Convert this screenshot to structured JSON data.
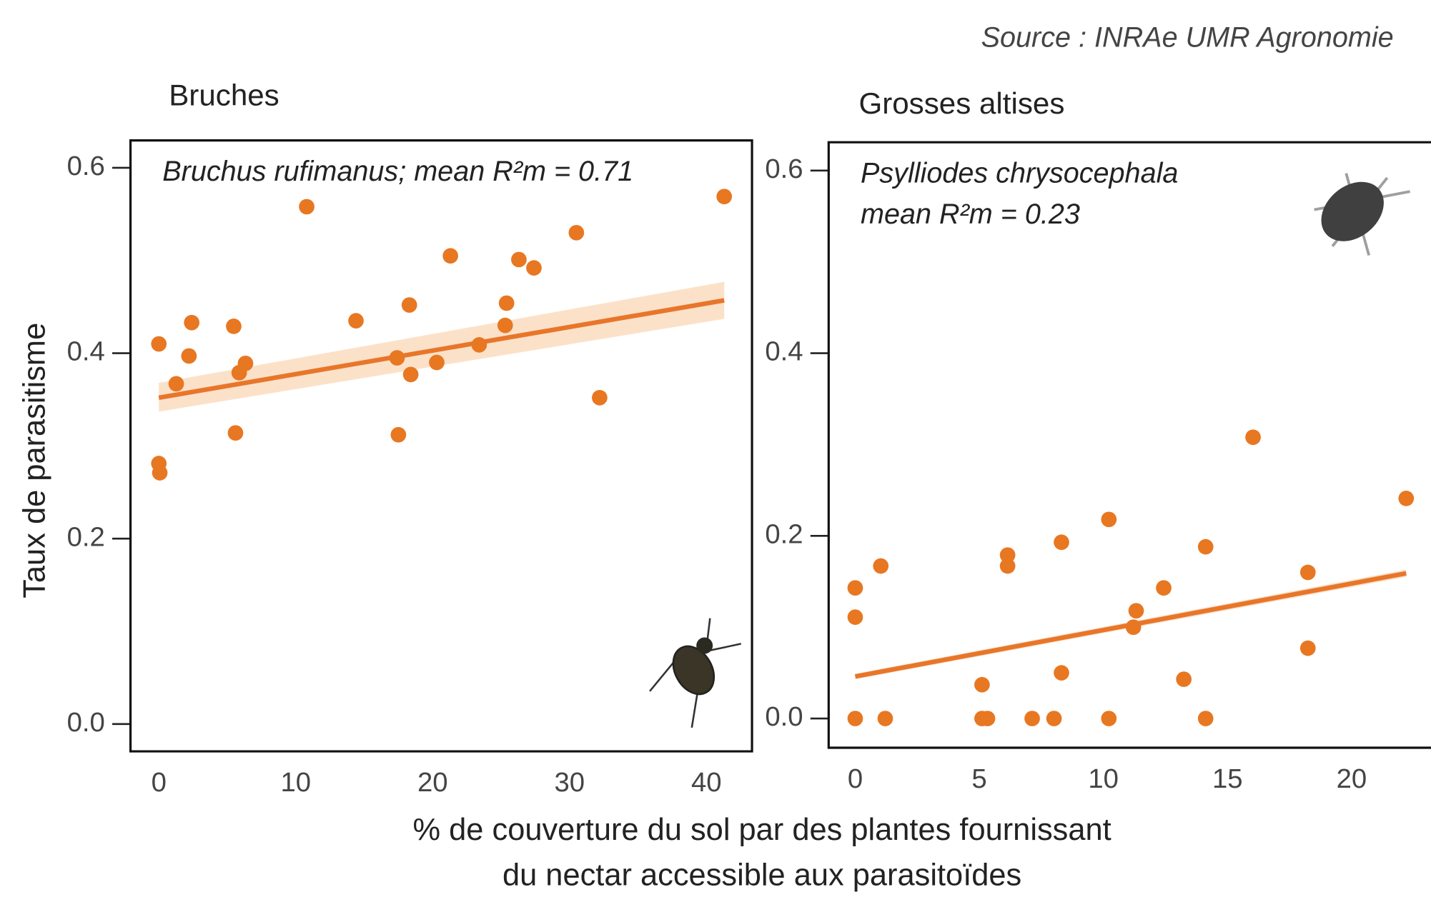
{
  "source": "Source : INRAe UMR Agronomie",
  "ylabel": "Taux de parasitisme",
  "xlabel": [
    "% de couverture du sol par des plantes fournissant",
    "du nectar accessible aux parasitoïdes"
  ],
  "chart_data": [
    {
      "type": "scatter",
      "title": "Bruches",
      "annotation": [
        "Bruchus rufimanus; mean R²m = 0.71"
      ],
      "color": "#e87722",
      "x": [
        0,
        1.27,
        2.4,
        2.2,
        0,
        0.07,
        5.47,
        5.87,
        6.33,
        5.6,
        10.8,
        14.4,
        17.4,
        17.5,
        18.3,
        18.4,
        20.3,
        21.3,
        23.4,
        25.4,
        25.3,
        26.3,
        27.4,
        30.5,
        32.2,
        41.3
      ],
      "y": [
        0.41,
        0.367,
        0.433,
        0.397,
        0.281,
        0.271,
        0.429,
        0.379,
        0.389,
        0.314,
        0.558,
        0.435,
        0.395,
        0.312,
        0.452,
        0.377,
        0.39,
        0.505,
        0.409,
        0.454,
        0.43,
        0.501,
        0.492,
        0.53,
        0.352,
        0.569
      ],
      "fit": {
        "x": [
          0,
          41.3
        ],
        "y": [
          0.352,
          0.457
        ],
        "ci_low": [
          0.337,
          0.437
        ],
        "ci_high": [
          0.368,
          0.477
        ]
      },
      "xlim": [
        -2.07,
        43.33
      ],
      "ylim": [
        -0.0295,
        0.6295
      ],
      "xticks": [
        0,
        10,
        20,
        30,
        40
      ],
      "yticks": [
        {
          "value": 0,
          "label": "0.0"
        },
        0.2,
        0.4,
        0.6
      ]
    },
    {
      "type": "scatter",
      "title": "Grosses altises",
      "annotation": [
        "Psylliodes chrysocephala",
        "mean R²m = 0.23"
      ],
      "color": "#e87722",
      "x": [
        0,
        0,
        0,
        1.03,
        1.21,
        5.11,
        5.11,
        5.33,
        6.14,
        6.14,
        7.13,
        8.01,
        8.31,
        8.31,
        10.22,
        10.22,
        11.32,
        11.21,
        12.43,
        13.24,
        14.12,
        14.12,
        16.03,
        18.24,
        18.24,
        22.2
      ],
      "y": [
        0.143,
        0.111,
        0,
        0.167,
        0,
        0.037,
        0,
        0,
        0.179,
        0.167,
        0,
        0,
        0.193,
        0.05,
        0.218,
        0,
        0.118,
        0.1,
        0.143,
        0.043,
        0.188,
        0,
        0.308,
        0.16,
        0.077,
        0.241
      ],
      "fit": {
        "x": [
          0,
          22.2
        ],
        "y": [
          0.046,
          0.159
        ],
        "ci_low": [
          0.043,
          0.155
        ],
        "ci_high": [
          0.049,
          0.163
        ]
      },
      "xlim": [
        -1.07,
        23.2
      ],
      "ylim": [
        -0.032,
        0.631
      ],
      "xticks": [
        0,
        5,
        10,
        15,
        20
      ],
      "yticks": [
        {
          "value": 0,
          "label": "0.0"
        },
        0.2,
        0.4,
        0.6
      ]
    }
  ]
}
